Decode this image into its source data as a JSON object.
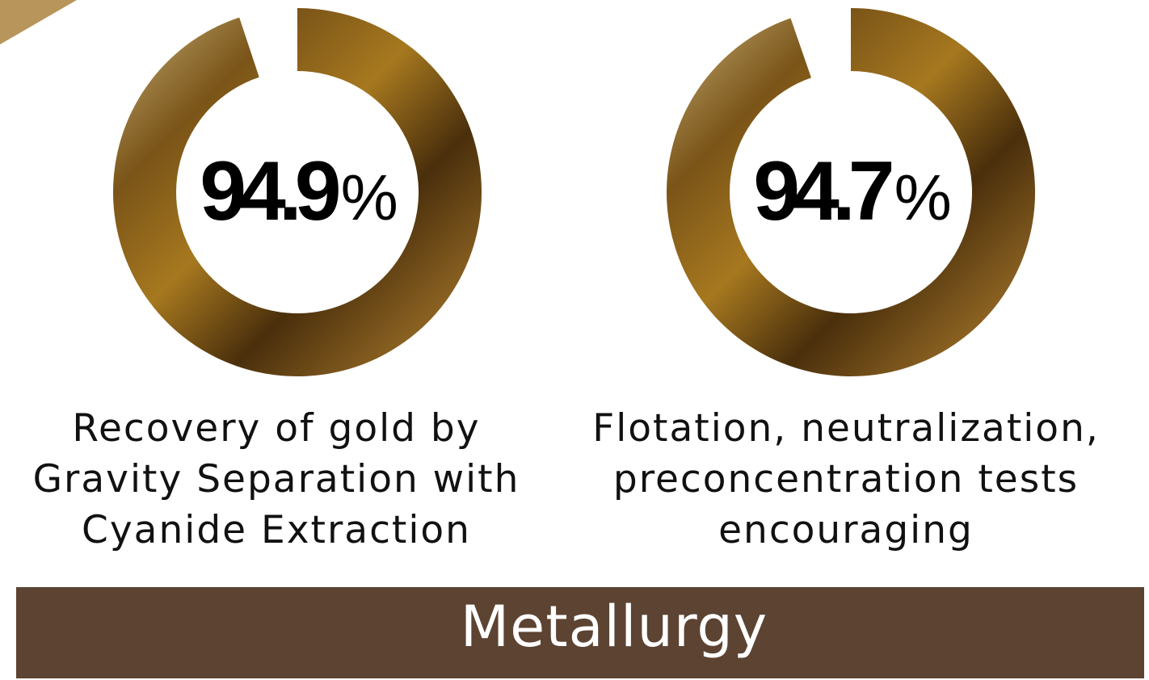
{
  "gauges": [
    {
      "value": 94.9,
      "unit": "%",
      "label_lines": [
        "Recovery of gold by",
        "Gravity Separation with",
        "Cyanide Extraction"
      ]
    },
    {
      "value": 94.7,
      "unit": "%",
      "label_lines": [
        "Flotation, neutralization,",
        "preconcentration tests",
        "encouraging"
      ]
    }
  ],
  "banner": {
    "title": "Metallurgy"
  }
}
